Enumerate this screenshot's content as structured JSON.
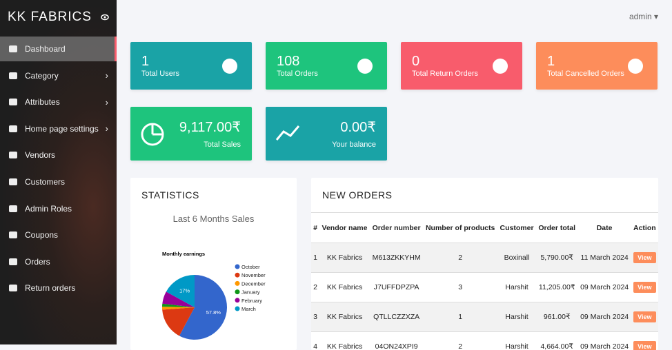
{
  "brand": "KK FABRICS",
  "user": "admin",
  "menu": [
    {
      "label": "Dashboard",
      "sub": false
    },
    {
      "label": "Category",
      "sub": true
    },
    {
      "label": "Attributes",
      "sub": true
    },
    {
      "label": "Home page settings",
      "sub": true
    },
    {
      "label": "Vendors",
      "sub": false
    },
    {
      "label": "Customers",
      "sub": false
    },
    {
      "label": "Admin Roles",
      "sub": false
    },
    {
      "label": "Coupons",
      "sub": false
    },
    {
      "label": "Orders",
      "sub": false
    },
    {
      "label": "Return orders",
      "sub": false
    }
  ],
  "cards": [
    {
      "value": "1",
      "label": "Total Users",
      "color": "#1aa3a6"
    },
    {
      "value": "108",
      "label": "Total Orders",
      "color": "#1ec47d"
    },
    {
      "value": "0",
      "label": "Total Return Orders",
      "color": "#f85c6c"
    },
    {
      "value": "1",
      "label": "Total Cancelled Orders",
      "color": "#fd8d5b"
    }
  ],
  "cards2": [
    {
      "value": "9,117.00₹",
      "label": "Total Sales",
      "color": "#1ec47d"
    },
    {
      "value": "0.00₹",
      "label": "Your balance",
      "color": "#1aa3a6"
    }
  ],
  "statistics": {
    "heading": "STATISTICS",
    "subtitle": "Last 6 Months Sales",
    "chart": {
      "type": "pie",
      "title": "Monthly earnings",
      "categories": [
        "October",
        "November",
        "December",
        "January",
        "February",
        "March"
      ],
      "values": [
        57.8,
        16,
        1.5,
        1.5,
        6.2,
        17
      ],
      "value_labels": [
        "57.8%",
        null,
        null,
        null,
        null,
        "17%"
      ],
      "colors": [
        "#3366cc",
        "#dc3912",
        "#ff9900",
        "#109618",
        "#990099",
        "#0099c6"
      ]
    }
  },
  "orders": {
    "heading": "NEW ORDERS",
    "columns": [
      "#",
      "Vendor name",
      "Order number",
      "Number of products",
      "Customer",
      "Order total",
      "Date",
      "Action"
    ],
    "rows": [
      [
        "1",
        "KK Fabrics",
        "M613ZKKYHM",
        "2",
        "Boxinall",
        "5,790.00₹",
        "11 March 2024",
        "View"
      ],
      [
        "2",
        "KK Fabrics",
        "J7UFFDPZPA",
        "3",
        "Harshit",
        "11,205.00₹",
        "09 March 2024",
        "View"
      ],
      [
        "3",
        "KK Fabrics",
        "QTLLCZZXZA",
        "1",
        "Harshit",
        "961.00₹",
        "09 March 2024",
        "View"
      ],
      [
        "4",
        "KK Fabrics",
        "04ON24XPI9",
        "2",
        "Harshit",
        "4,664.00₹",
        "09 March 2024",
        "View"
      ]
    ]
  }
}
